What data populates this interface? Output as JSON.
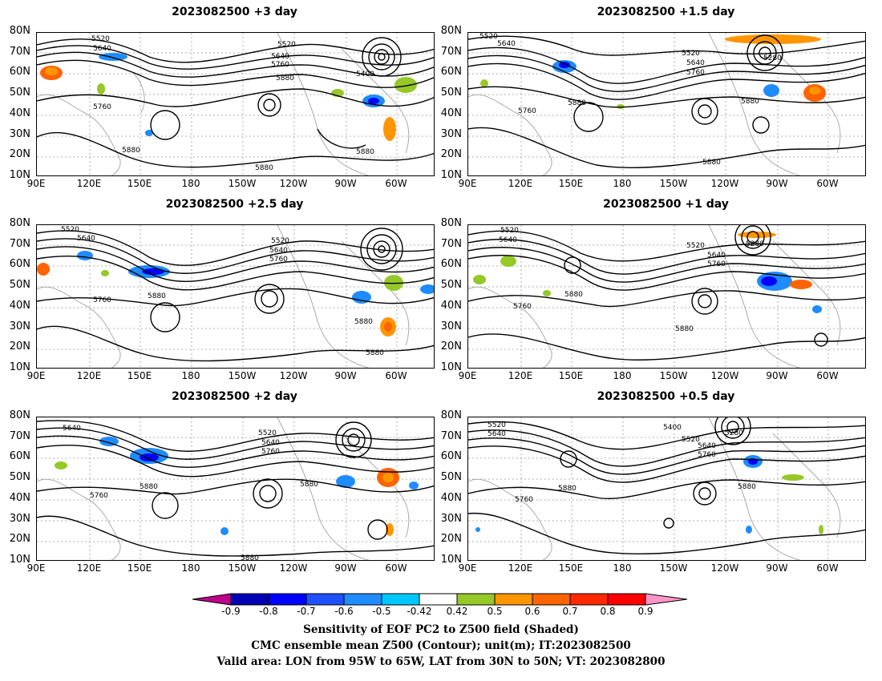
{
  "panels": [
    {
      "title": "2023082500 +3 day",
      "contour_labels": [
        "5520",
        "5640",
        "5520",
        "5640",
        "5760",
        "5880",
        "5400",
        "5760",
        "5880",
        "5880",
        "5880"
      ]
    },
    {
      "title": "2023082500 +1.5 day",
      "contour_labels": [
        "5520",
        "5640",
        "5520",
        "5640",
        "5760",
        "5280",
        "5880",
        "5760",
        "5880",
        "5880"
      ]
    },
    {
      "title": "2023082500 +2.5 day",
      "contour_labels": [
        "5520",
        "5640",
        "5520",
        "5640",
        "5760",
        "5760",
        "5880",
        "5880",
        "5880"
      ]
    },
    {
      "title": "2023082500 +1 day",
      "contour_labels": [
        "5520",
        "5640",
        "5520",
        "5280",
        "5640",
        "5760",
        "5760",
        "5880",
        "5880"
      ]
    },
    {
      "title": "2023082500 +2 day",
      "contour_labels": [
        "5640",
        "5520",
        "5640",
        "5760",
        "5760",
        "5880",
        "5880",
        "5880"
      ]
    },
    {
      "title": "2023082500 +0.5 day",
      "contour_labels": [
        "5520",
        "5640",
        "5400",
        "5280",
        "5520",
        "5640",
        "5760",
        "5880",
        "5760",
        "5880"
      ]
    }
  ],
  "lat_labels": [
    "80N",
    "70N",
    "60N",
    "50N",
    "40N",
    "30N",
    "20N",
    "10N"
  ],
  "lon_labels": [
    "90E",
    "120E",
    "150E",
    "180",
    "150W",
    "120W",
    "90W",
    "60W"
  ],
  "colorbar": {
    "labels": [
      "-0.9",
      "-0.8",
      "-0.7",
      "-0.6",
      "-0.5",
      "-0.42",
      "0.42",
      "0.5",
      "0.6",
      "0.7",
      "0.8",
      "0.9"
    ],
    "colors": [
      "#c0008c",
      "#0000b4",
      "#0000ff",
      "#1e50ff",
      "#1e8cff",
      "#00c8ff",
      "#ffffff",
      "#96c828",
      "#ff9600",
      "#ff6400",
      "#ff2800",
      "#ff0000",
      "#ff96c8"
    ]
  },
  "captions": [
    "Sensitivity of EOF PC2 to Z500 field (Shaded)",
    "CMC ensemble mean Z500 (Contour); unit(m); IT:2023082500",
    "Valid area: LON from 95W to 65W, LAT from 30N to 50N; VT: 2023082800"
  ]
}
